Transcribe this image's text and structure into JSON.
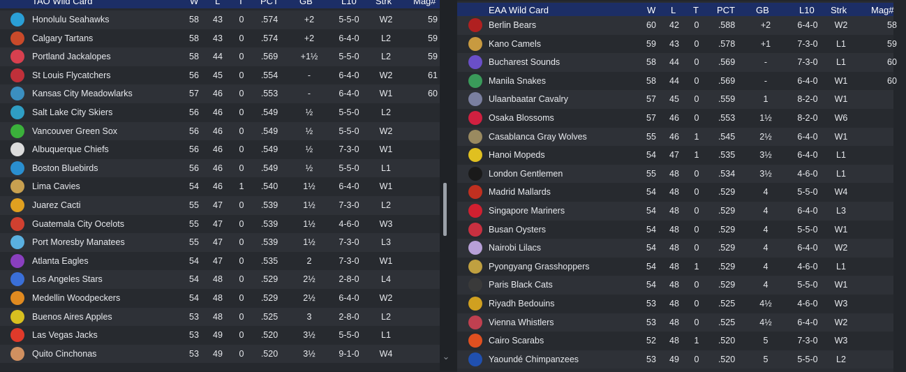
{
  "left": {
    "title": "TAO  Wild Card",
    "columns": [
      "W",
      "L",
      "T",
      "PCT",
      "GB",
      "L10",
      "Strk",
      "Mag#"
    ],
    "rows": [
      {
        "team": "Honolulu Seahawks",
        "w": "58",
        "l": "43",
        "t": "0",
        "pct": ".574",
        "gb": "+2",
        "l10": "5-5-0",
        "strk": "W2",
        "mag": "59",
        "color": "#2a9fd6"
      },
      {
        "team": "Calgary Tartans",
        "w": "58",
        "l": "43",
        "t": "0",
        "pct": ".574",
        "gb": "+2",
        "l10": "6-4-0",
        "strk": "L2",
        "mag": "59",
        "color": "#c94a2a"
      },
      {
        "team": "Portland Jackalopes",
        "w": "58",
        "l": "44",
        "t": "0",
        "pct": ".569",
        "gb": "+1½",
        "l10": "5-5-0",
        "strk": "L2",
        "mag": "59",
        "color": "#d8404f"
      },
      {
        "team": "St Louis Flycatchers",
        "w": "56",
        "l": "45",
        "t": "0",
        "pct": ".554",
        "gb": "-",
        "l10": "6-4-0",
        "strk": "W2",
        "mag": "61",
        "color": "#c0303a"
      },
      {
        "team": "Kansas City Meadowlarks",
        "w": "57",
        "l": "46",
        "t": "0",
        "pct": ".553",
        "gb": "-",
        "l10": "6-4-0",
        "strk": "W1",
        "mag": "60",
        "color": "#3b8fc0"
      },
      {
        "team": "Salt Lake City Skiers",
        "w": "56",
        "l": "46",
        "t": "0",
        "pct": ".549",
        "gb": "½",
        "l10": "5-5-0",
        "strk": "L2",
        "mag": "",
        "color": "#2f9ec4"
      },
      {
        "team": "Vancouver Green Sox",
        "w": "56",
        "l": "46",
        "t": "0",
        "pct": ".549",
        "gb": "½",
        "l10": "5-5-0",
        "strk": "W2",
        "mag": "",
        "color": "#3bb03b"
      },
      {
        "team": "Albuquerque Chiefs",
        "w": "56",
        "l": "46",
        "t": "0",
        "pct": ".549",
        "gb": "½",
        "l10": "7-3-0",
        "strk": "W1",
        "mag": "",
        "color": "#dcdcdc"
      },
      {
        "team": "Boston Bluebirds",
        "w": "56",
        "l": "46",
        "t": "0",
        "pct": ".549",
        "gb": "½",
        "l10": "5-5-0",
        "strk": "L1",
        "mag": "",
        "color": "#2a8fd0"
      },
      {
        "team": "Lima Cavies",
        "w": "54",
        "l": "46",
        "t": "1",
        "pct": ".540",
        "gb": "1½",
        "l10": "6-4-0",
        "strk": "W1",
        "mag": "",
        "color": "#c8a050"
      },
      {
        "team": "Juarez Cacti",
        "w": "55",
        "l": "47",
        "t": "0",
        "pct": ".539",
        "gb": "1½",
        "l10": "7-3-0",
        "strk": "L2",
        "mag": "",
        "color": "#e0a020"
      },
      {
        "team": "Guatemala City Ocelots",
        "w": "55",
        "l": "47",
        "t": "0",
        "pct": ".539",
        "gb": "1½",
        "l10": "4-6-0",
        "strk": "W3",
        "mag": "",
        "color": "#d04030"
      },
      {
        "team": "Port Moresby Manatees",
        "w": "55",
        "l": "47",
        "t": "0",
        "pct": ".539",
        "gb": "1½",
        "l10": "7-3-0",
        "strk": "L3",
        "mag": "",
        "color": "#5ab0e0"
      },
      {
        "team": "Atlanta Eagles",
        "w": "54",
        "l": "47",
        "t": "0",
        "pct": ".535",
        "gb": "2",
        "l10": "7-3-0",
        "strk": "W1",
        "mag": "",
        "color": "#8a3fbf"
      },
      {
        "team": "Los Angeles Stars",
        "w": "54",
        "l": "48",
        "t": "0",
        "pct": ".529",
        "gb": "2½",
        "l10": "2-8-0",
        "strk": "L4",
        "mag": "",
        "color": "#3a6fd8"
      },
      {
        "team": "Medellin Woodpeckers",
        "w": "54",
        "l": "48",
        "t": "0",
        "pct": ".529",
        "gb": "2½",
        "l10": "6-4-0",
        "strk": "W2",
        "mag": "",
        "color": "#e08a20"
      },
      {
        "team": "Buenos Aires Apples",
        "w": "53",
        "l": "48",
        "t": "0",
        "pct": ".525",
        "gb": "3",
        "l10": "2-8-0",
        "strk": "L2",
        "mag": "",
        "color": "#d8c020"
      },
      {
        "team": "Las Vegas Jacks",
        "w": "53",
        "l": "49",
        "t": "0",
        "pct": ".520",
        "gb": "3½",
        "l10": "5-5-0",
        "strk": "L1",
        "mag": "",
        "color": "#e03a2a"
      },
      {
        "team": "Quito Cinchonas",
        "w": "53",
        "l": "49",
        "t": "0",
        "pct": ".520",
        "gb": "3½",
        "l10": "9-1-0",
        "strk": "W4",
        "mag": "",
        "color": "#d09060"
      }
    ]
  },
  "right": {
    "title": "EAA  Wild Card",
    "columns": [
      "W",
      "L",
      "T",
      "PCT",
      "GB",
      "L10",
      "Strk",
      "Mag#"
    ],
    "rows": [
      {
        "team": "Berlin Bears",
        "w": "60",
        "l": "42",
        "t": "0",
        "pct": ".588",
        "gb": "+2",
        "l10": "6-4-0",
        "strk": "W2",
        "mag": "58",
        "color": "#b02020"
      },
      {
        "team": "Kano Camels",
        "w": "59",
        "l": "43",
        "t": "0",
        "pct": ".578",
        "gb": "+1",
        "l10": "7-3-0",
        "strk": "L1",
        "mag": "59",
        "color": "#c89a40"
      },
      {
        "team": "Bucharest Sounds",
        "w": "58",
        "l": "44",
        "t": "0",
        "pct": ".569",
        "gb": "-",
        "l10": "7-3-0",
        "strk": "L1",
        "mag": "60",
        "color": "#6a4fc8"
      },
      {
        "team": "Manila Snakes",
        "w": "58",
        "l": "44",
        "t": "0",
        "pct": ".569",
        "gb": "-",
        "l10": "6-4-0",
        "strk": "W1",
        "mag": "60",
        "color": "#3a9a5a"
      },
      {
        "team": "Ulaanbaatar Cavalry",
        "w": "57",
        "l": "45",
        "t": "0",
        "pct": ".559",
        "gb": "1",
        "l10": "8-2-0",
        "strk": "W1",
        "mag": "",
        "color": "#7a7fa0"
      },
      {
        "team": "Osaka Blossoms",
        "w": "57",
        "l": "46",
        "t": "0",
        "pct": ".553",
        "gb": "1½",
        "l10": "8-2-0",
        "strk": "W6",
        "mag": "",
        "color": "#d02040"
      },
      {
        "team": "Casablanca Gray Wolves",
        "w": "55",
        "l": "46",
        "t": "1",
        "pct": ".545",
        "gb": "2½",
        "l10": "6-4-0",
        "strk": "W1",
        "mag": "",
        "color": "#9a8a60"
      },
      {
        "team": "Hanoi Mopeds",
        "w": "54",
        "l": "47",
        "t": "1",
        "pct": ".535",
        "gb": "3½",
        "l10": "6-4-0",
        "strk": "L1",
        "mag": "",
        "color": "#e0c020"
      },
      {
        "team": "London Gentlemen",
        "w": "55",
        "l": "48",
        "t": "0",
        "pct": ".534",
        "gb": "3½",
        "l10": "4-6-0",
        "strk": "L1",
        "mag": "",
        "color": "#1a1a1a"
      },
      {
        "team": "Madrid Mallards",
        "w": "54",
        "l": "48",
        "t": "0",
        "pct": ".529",
        "gb": "4",
        "l10": "5-5-0",
        "strk": "W4",
        "mag": "",
        "color": "#c03020"
      },
      {
        "team": "Singapore Mariners",
        "w": "54",
        "l": "48",
        "t": "0",
        "pct": ".529",
        "gb": "4",
        "l10": "6-4-0",
        "strk": "L3",
        "mag": "",
        "color": "#d02030"
      },
      {
        "team": "Busan Oysters",
        "w": "54",
        "l": "48",
        "t": "0",
        "pct": ".529",
        "gb": "4",
        "l10": "5-5-0",
        "strk": "W1",
        "mag": "",
        "color": "#c83040"
      },
      {
        "team": "Nairobi Lilacs",
        "w": "54",
        "l": "48",
        "t": "0",
        "pct": ".529",
        "gb": "4",
        "l10": "6-4-0",
        "strk": "W2",
        "mag": "",
        "color": "#b8a0d8"
      },
      {
        "team": "Pyongyang Grasshoppers",
        "w": "54",
        "l": "48",
        "t": "1",
        "pct": ".529",
        "gb": "4",
        "l10": "4-6-0",
        "strk": "L1",
        "mag": "",
        "color": "#c0a040"
      },
      {
        "team": "Paris Black Cats",
        "w": "54",
        "l": "48",
        "t": "0",
        "pct": ".529",
        "gb": "4",
        "l10": "5-5-0",
        "strk": "W1",
        "mag": "",
        "color": "#3a3a3a"
      },
      {
        "team": "Riyadh Bedouins",
        "w": "53",
        "l": "48",
        "t": "0",
        "pct": ".525",
        "gb": "4½",
        "l10": "4-6-0",
        "strk": "W3",
        "mag": "",
        "color": "#d0a020"
      },
      {
        "team": "Vienna Whistlers",
        "w": "53",
        "l": "48",
        "t": "0",
        "pct": ".525",
        "gb": "4½",
        "l10": "6-4-0",
        "strk": "W2",
        "mag": "",
        "color": "#c04050"
      },
      {
        "team": "Cairo Scarabs",
        "w": "52",
        "l": "48",
        "t": "1",
        "pct": ".520",
        "gb": "5",
        "l10": "7-3-0",
        "strk": "W3",
        "mag": "",
        "color": "#e05020"
      },
      {
        "team": "Yaoundé Chimpanzees",
        "w": "53",
        "l": "49",
        "t": "0",
        "pct": ".520",
        "gb": "5",
        "l10": "5-5-0",
        "strk": "L2",
        "mag": "",
        "color": "#2050b0"
      }
    ]
  }
}
